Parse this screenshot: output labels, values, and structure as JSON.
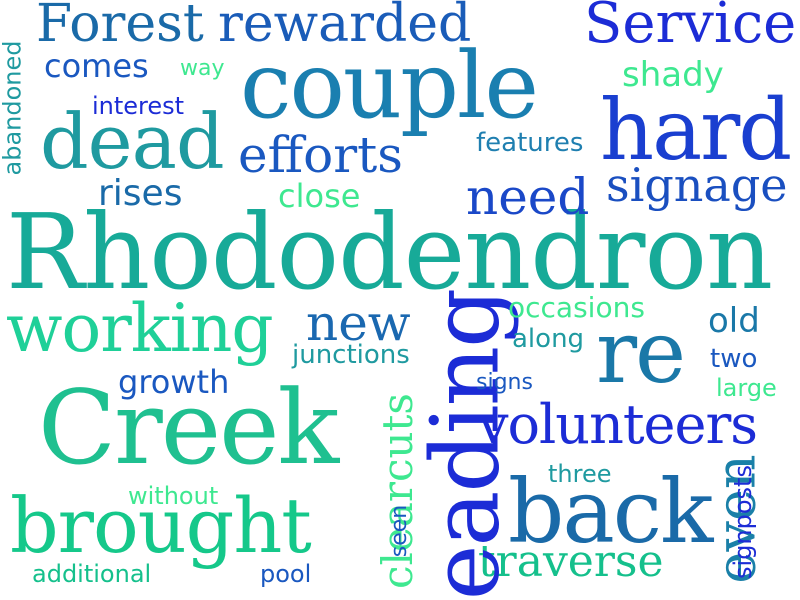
{
  "colors": {
    "navy": "#1f2fa8",
    "royal": "#1c2cd6",
    "blue": "#1a4fc0",
    "steel": "#1a6aa8",
    "teal": "#1f8da0",
    "sea": "#17aa98",
    "mint": "#1fd098",
    "lime": "#3ee890",
    "green": "#15c88a"
  },
  "words": [
    {
      "text": "Rhododendron"
    },
    {
      "text": "Creek"
    },
    {
      "text": "couple"
    },
    {
      "text": "leading"
    },
    {
      "text": "hard"
    },
    {
      "text": "back"
    },
    {
      "text": "brought"
    },
    {
      "text": "Forest"
    },
    {
      "text": "rewarded"
    },
    {
      "text": "Service"
    },
    {
      "text": "dead"
    },
    {
      "text": "working"
    },
    {
      "text": "volunteers"
    },
    {
      "text": "re"
    },
    {
      "text": "efforts"
    },
    {
      "text": "signage"
    },
    {
      "text": "need"
    },
    {
      "text": "new"
    },
    {
      "text": "even"
    },
    {
      "text": "clearcuts"
    },
    {
      "text": "traverse"
    },
    {
      "text": "rises"
    },
    {
      "text": "comes"
    },
    {
      "text": "shady"
    },
    {
      "text": "close"
    },
    {
      "text": "growth"
    },
    {
      "text": "old"
    },
    {
      "text": "occasions"
    },
    {
      "text": "junctions"
    },
    {
      "text": "along"
    },
    {
      "text": "features"
    },
    {
      "text": "interest"
    },
    {
      "text": "way"
    },
    {
      "text": "abandoned"
    },
    {
      "text": "two"
    },
    {
      "text": "large"
    },
    {
      "text": "signs"
    },
    {
      "text": "three"
    },
    {
      "text": "without"
    },
    {
      "text": "seen"
    },
    {
      "text": "additional"
    },
    {
      "text": "signposts"
    },
    {
      "text": "pool"
    }
  ]
}
